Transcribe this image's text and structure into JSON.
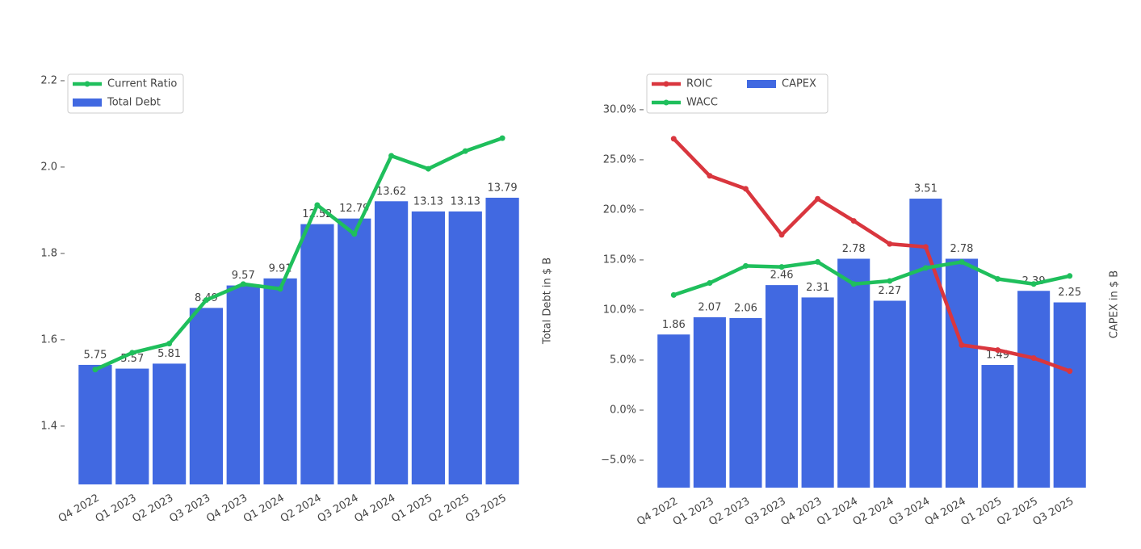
{
  "chart_data": [
    {
      "type": "combo",
      "categories": [
        "Q4 2022",
        "Q1 2023",
        "Q2 2023",
        "Q3 2023",
        "Q4 2023",
        "Q1 2024",
        "Q2 2024",
        "Q3 2024",
        "Q4 2024",
        "Q1 2025",
        "Q2 2025",
        "Q3 2025"
      ],
      "series": [
        {
          "name": "Current Ratio",
          "kind": "line",
          "color": "#1fbf5c",
          "values": [
            1.531,
            1.57,
            1.591,
            1.692,
            1.729,
            1.718,
            1.912,
            1.845,
            2.026,
            1.996,
            2.037,
            2.067
          ]
        },
        {
          "name": "Total Debt",
          "kind": "bar",
          "axis": "y2",
          "color": "#4169e1",
          "values": [
            5.75,
            5.57,
            5.81,
            8.49,
            9.57,
            9.91,
            12.52,
            12.79,
            13.62,
            13.13,
            13.13,
            13.79
          ]
        }
      ],
      "ylim": [
        1.265,
        2.228
      ],
      "yticks": [
        1.4,
        1.6,
        1.8,
        {
          "value": 2,
          "label": "2.0"
        },
        2.2
      ],
      "y2lim": [
        0,
        20
      ],
      "y2_label": "Total Debt in $ B",
      "legend": "upper left",
      "legend_columns": 1
    },
    {
      "type": "combo",
      "categories": [
        "Q4 2022",
        "Q1 2023",
        "Q2 2023",
        "Q3 2023",
        "Q4 2023",
        "Q1 2024",
        "Q2 2024",
        "Q3 2024",
        "Q4 2024",
        "Q1 2025",
        "Q2 2025",
        "Q3 2025"
      ],
      "series": [
        {
          "name": "ROIC",
          "kind": "line",
          "color": "#d9363e",
          "values": [
            27.1,
            23.4,
            22.1,
            17.5,
            21.1,
            18.9,
            16.6,
            16.3,
            6.5,
            6.0,
            5.2,
            3.9
          ]
        },
        {
          "name": "WACC",
          "kind": "line",
          "color": "#1fbf5c",
          "values": [
            11.5,
            12.7,
            14.4,
            14.3,
            14.8,
            12.6,
            12.9,
            14.2,
            14.8,
            13.1,
            12.6,
            13.4
          ]
        },
        {
          "name": "CAPEX",
          "kind": "bar",
          "axis": "y2",
          "color": "#4169e1",
          "values": [
            1.86,
            2.07,
            2.06,
            2.46,
            2.31,
            2.78,
            2.27,
            3.51,
            2.78,
            1.49,
            2.39,
            2.25
          ]
        }
      ],
      "ylim": [
        -7.74,
        33.7
      ],
      "yticks": [
        {
          "value": -5,
          "label": "−5.0%"
        },
        {
          "value": 0,
          "label": "0.0%"
        },
        {
          "value": 5,
          "label": "5.0%"
        },
        {
          "value": 10,
          "label": "10.0%"
        },
        {
          "value": 15,
          "label": "15.0%"
        },
        {
          "value": 20,
          "label": "20.0%"
        },
        {
          "value": 25,
          "label": "25.0%"
        },
        {
          "value": 30,
          "label": "30.0%"
        }
      ],
      "y2lim": [
        0,
        5.04
      ],
      "y2_label": "CAPEX in $ B",
      "legend": "upper left",
      "legend_columns": 2
    }
  ]
}
